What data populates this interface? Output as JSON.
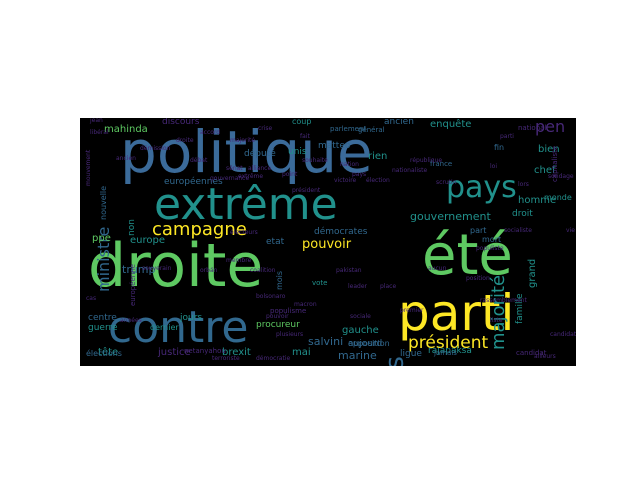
{
  "wordcloud": {
    "background": "#000000",
    "palette": {
      "yellow": "#fde725",
      "green": "#5ec962",
      "teal": "#21918c",
      "steel": "#3b6b9a",
      "blue": "#31688e",
      "purple": "#472878",
      "darkpurple": "#3a1a55"
    },
    "words": [
      {
        "text": "politique",
        "color": "steel"
      },
      {
        "text": "droite",
        "color": "green"
      },
      {
        "text": "été",
        "color": "green"
      },
      {
        "text": "extrême",
        "color": "teal"
      },
      {
        "text": "contre",
        "color": "blue"
      },
      {
        "text": "parti",
        "color": "yellow"
      },
      {
        "text": "pays",
        "color": "teal"
      },
      {
        "text": "ans",
        "color": "blue"
      },
      {
        "text": "campagne",
        "color": "yellow"
      },
      {
        "text": "président",
        "color": "yellow"
      },
      {
        "text": "majorité",
        "color": "teal"
      },
      {
        "text": "pen",
        "color": "purple"
      },
      {
        "text": "ministre",
        "color": "blue"
      },
      {
        "text": "gouvernement",
        "color": "teal"
      },
      {
        "text": "mahinda",
        "color": "green"
      },
      {
        "text": "discours",
        "color": "purple"
      },
      {
        "text": "européennes",
        "color": "blue"
      },
      {
        "text": "trump",
        "color": "blue"
      },
      {
        "text": "europe",
        "color": "teal"
      },
      {
        "text": "pouvoir",
        "color": "yellow"
      },
      {
        "text": "ppe",
        "color": "green"
      },
      {
        "text": "rajapaksa",
        "color": "teal"
      },
      {
        "text": "justice",
        "color": "purple"
      },
      {
        "text": "brexit",
        "color": "teal"
      },
      {
        "text": "salvini",
        "color": "blue"
      },
      {
        "text": "marine",
        "color": "blue"
      },
      {
        "text": "ligue",
        "color": "blue"
      },
      {
        "text": "gauche",
        "color": "teal"
      },
      {
        "text": "tête",
        "color": "teal"
      },
      {
        "text": "mai",
        "color": "teal"
      },
      {
        "text": "jours",
        "color": "teal"
      },
      {
        "text": "guerre",
        "color": "teal"
      },
      {
        "text": "centre",
        "color": "blue"
      },
      {
        "text": "homme",
        "color": "teal"
      },
      {
        "text": "famille",
        "color": "teal"
      },
      {
        "text": "grand",
        "color": "teal"
      },
      {
        "text": "chef",
        "color": "teal"
      },
      {
        "text": "bien",
        "color": "teal"
      },
      {
        "text": "ancien",
        "color": "blue"
      },
      {
        "text": "enquête",
        "color": "teal"
      },
      {
        "text": "rien",
        "color": "teal"
      },
      {
        "text": "matteo",
        "color": "blue"
      },
      {
        "text": "unis",
        "color": "teal"
      },
      {
        "text": "aujourd",
        "color": "blue"
      },
      {
        "text": "opposition",
        "color": "blue"
      },
      {
        "text": "droit",
        "color": "teal"
      },
      {
        "text": "monde",
        "color": "teal"
      },
      {
        "text": "mort",
        "color": "blue"
      },
      {
        "text": "part",
        "color": "blue"
      },
      {
        "text": "nouvelle",
        "color": "blue"
      },
      {
        "text": "non",
        "color": "teal"
      },
      {
        "text": "etat",
        "color": "blue"
      },
      {
        "text": "démocrates",
        "color": "blue"
      },
      {
        "text": "procureur",
        "color": "green"
      },
      {
        "text": "député",
        "color": "blue"
      },
      {
        "text": "coup",
        "color": "teal"
      },
      {
        "text": "fin",
        "color": "blue"
      },
      {
        "text": "dernier",
        "color": "teal"
      },
      {
        "text": "mois",
        "color": "blue"
      },
      {
        "text": "national",
        "color": "purple"
      },
      {
        "text": "général",
        "color": "blue"
      },
      {
        "text": "parlement",
        "color": "blue"
      },
      {
        "text": "élections",
        "color": "blue"
      },
      {
        "text": "candidat",
        "color": "purple"
      },
      {
        "text": "vote",
        "color": "teal"
      },
      {
        "text": "netanyahou",
        "color": "purple"
      },
      {
        "text": "france",
        "color": "blue"
      },
      {
        "text": "européenne",
        "color": "purple"
      },
      {
        "text": "jamais",
        "color": "blue"
      },
      {
        "text": "populisme",
        "color": "purple"
      },
      {
        "text": "capitaliste",
        "color": "purple"
      },
      {
        "text": "ailleurs",
        "color": "purple"
      },
      {
        "text": "alliance",
        "color": "purple"
      },
      {
        "text": "démocratie",
        "color": "purple"
      },
      {
        "text": "accord",
        "color": "purple"
      },
      {
        "text": "libéral",
        "color": "purple"
      },
      {
        "text": "république",
        "color": "purple"
      },
      {
        "text": "populiste",
        "color": "purple"
      },
      {
        "text": "lors",
        "color": "purple"
      },
      {
        "text": "vie",
        "color": "purple"
      },
      {
        "text": "cas",
        "color": "purple"
      },
      {
        "text": "aucun",
        "color": "purple"
      },
      {
        "text": "membre",
        "color": "purple"
      },
      {
        "text": "démission",
        "color": "purple"
      },
      {
        "text": "terroriste",
        "color": "purple"
      },
      {
        "text": "position",
        "color": "purple"
      },
      {
        "text": "sénat",
        "color": "purple"
      },
      {
        "text": "nation",
        "color": "purple"
      },
      {
        "text": "plusieurs",
        "color": "purple"
      },
      {
        "text": "parti",
        "color": "purple"
      },
      {
        "text": "mouvement",
        "color": "purple"
      },
      {
        "text": "souverain",
        "color": "purple"
      },
      {
        "text": "pays",
        "color": "purple"
      },
      {
        "text": "socialiste",
        "color": "purple"
      },
      {
        "text": "pouvoir",
        "color": "purple"
      },
      {
        "text": "loi",
        "color": "purple"
      },
      {
        "text": "scrutin",
        "color": "purple"
      },
      {
        "text": "gouvernance",
        "color": "purple"
      },
      {
        "text": "nationaliste",
        "color": "purple"
      },
      {
        "text": "extrême",
        "color": "purple"
      },
      {
        "text": "victoire",
        "color": "purple"
      },
      {
        "text": "rassemblement",
        "color": "purple"
      },
      {
        "text": "majorité",
        "color": "purple"
      },
      {
        "text": "coalition",
        "color": "purple"
      },
      {
        "text": "pakistan",
        "color": "purple"
      },
      {
        "text": "droite",
        "color": "purple"
      },
      {
        "text": "électeurs",
        "color": "purple"
      },
      {
        "text": "premier",
        "color": "purple"
      },
      {
        "text": "liste",
        "color": "purple"
      },
      {
        "text": "sociale",
        "color": "purple"
      },
      {
        "text": "fait",
        "color": "purple"
      },
      {
        "text": "années",
        "color": "purple"
      },
      {
        "text": "candidats",
        "color": "purple"
      },
      {
        "text": "élection",
        "color": "purple"
      },
      {
        "text": "souhaite",
        "color": "purple"
      },
      {
        "text": "débat",
        "color": "purple"
      },
      {
        "text": "crise",
        "color": "purple"
      },
      {
        "text": "jean",
        "color": "purple"
      },
      {
        "text": "point",
        "color": "purple"
      },
      {
        "text": "orbán",
        "color": "purple"
      },
      {
        "text": "président",
        "color": "purple"
      },
      {
        "text": "leader",
        "color": "purple"
      },
      {
        "text": "bolsonaro",
        "color": "purple"
      },
      {
        "text": "ancien",
        "color": "purple"
      },
      {
        "text": "place",
        "color": "purple"
      },
      {
        "text": "macron",
        "color": "purple"
      },
      {
        "text": "sondage",
        "color": "purple"
      }
    ]
  }
}
